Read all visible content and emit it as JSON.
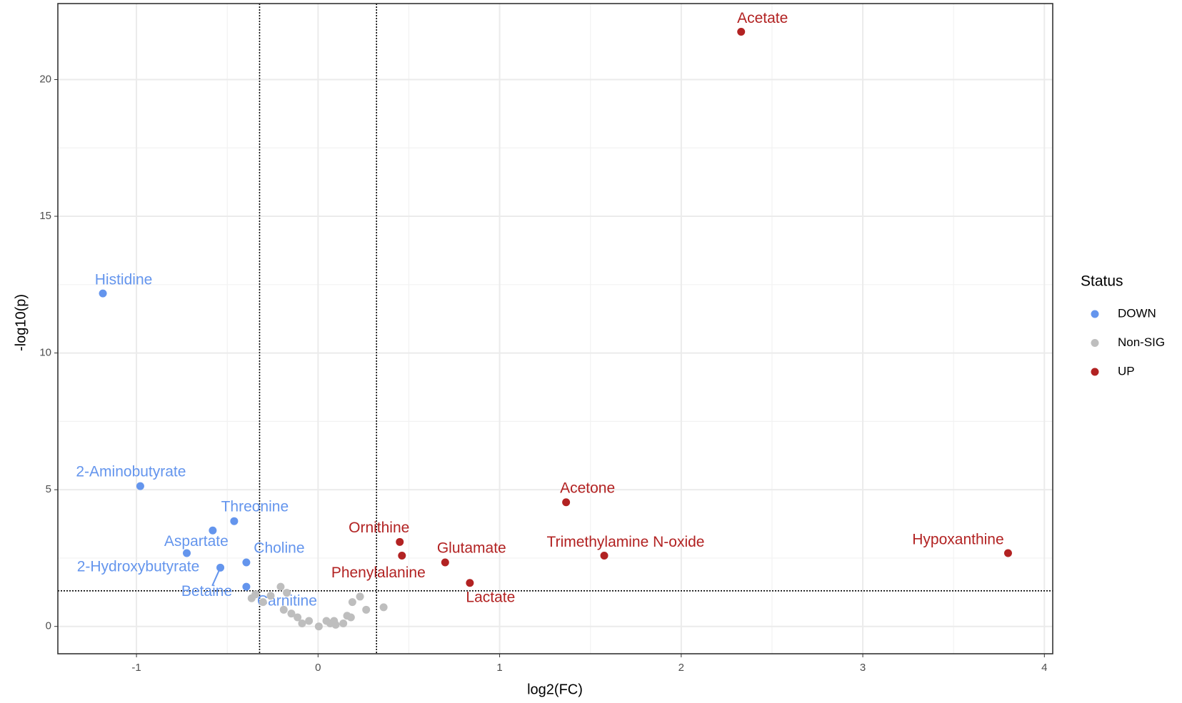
{
  "chart_data": {
    "type": "scatter",
    "x_label": "log2(FC)",
    "y_label": "-log10(p)",
    "xlim": [
      -1.433,
      4.046
    ],
    "ylim": [
      -1.0,
      22.78
    ],
    "xticks": [
      -1,
      0,
      1,
      2,
      3,
      4
    ],
    "yticks": [
      0,
      5,
      10,
      15,
      20
    ],
    "grid": true,
    "vlines": [
      -0.322,
      0.322
    ],
    "hline": 1.301,
    "legend_title": "Status",
    "legend_position": "right",
    "series": [
      {
        "name": "DOWN",
        "color": "#6495ED",
        "x": [
          -1.185,
          -0.979,
          -0.462,
          -0.58,
          -0.723,
          -0.538,
          -0.395,
          -0.395
        ],
        "y": [
          12.18,
          5.13,
          3.85,
          3.51,
          2.68,
          2.15,
          2.34,
          1.45
        ],
        "labels": [
          "Histidine",
          "2-Aminobutyrate",
          "Threonine",
          "Aspartate",
          "2-Hydroxybutyrate",
          "Betaine",
          "Choline",
          "Carnitine"
        ]
      },
      {
        "name": "Non-SIG",
        "color": "#BEBEBE",
        "x": [
          -0.366,
          -0.345,
          -0.303,
          -0.261,
          -0.206,
          -0.189,
          -0.172,
          -0.147,
          -0.113,
          -0.088,
          -0.05,
          0.004,
          0.046,
          0.067,
          0.088,
          0.097,
          0.139,
          0.16,
          0.181,
          0.189,
          0.231,
          0.265,
          0.361
        ],
        "y": [
          1.03,
          1.17,
          0.89,
          1.12,
          1.45,
          0.61,
          1.23,
          0.47,
          0.33,
          0.11,
          0.2,
          0.0,
          0.2,
          0.11,
          0.2,
          0.06,
          0.11,
          0.39,
          0.33,
          0.89,
          1.09,
          0.61,
          0.7
        ]
      },
      {
        "name": "UP",
        "color": "#B22222",
        "x": [
          2.33,
          1.366,
          3.8,
          1.576,
          0.45,
          0.462,
          0.7,
          0.836
        ],
        "y": [
          21.75,
          4.54,
          2.68,
          2.59,
          3.09,
          2.59,
          2.34,
          1.59
        ],
        "labels": [
          "Acetate",
          "Acetone",
          "Hypoxanthine",
          "Trimethylamine N-oxide",
          "Ornithine",
          "Phenylalanine",
          "Glutamate",
          "Lactate"
        ]
      }
    ]
  }
}
